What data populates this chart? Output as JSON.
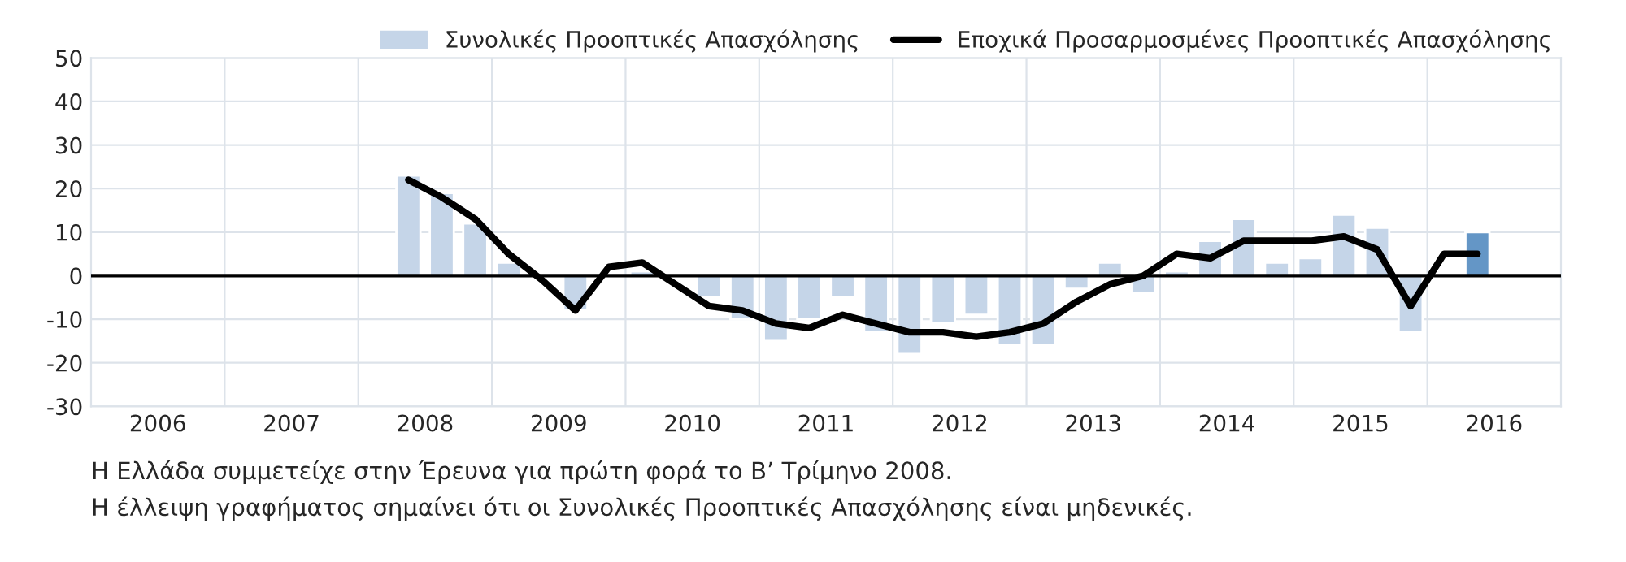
{
  "chart_data": {
    "type": "bar",
    "x": [
      2008.375,
      2008.625,
      2008.875,
      2009.125,
      2009.375,
      2009.625,
      2009.875,
      2010.125,
      2010.375,
      2010.625,
      2010.875,
      2011.125,
      2011.375,
      2011.625,
      2011.875,
      2012.125,
      2012.375,
      2012.625,
      2012.875,
      2013.125,
      2013.375,
      2013.625,
      2013.875,
      2014.125,
      2014.375,
      2014.625,
      2014.875,
      2015.125,
      2015.375,
      2015.625,
      2015.875,
      2016.125,
      2016.375
    ],
    "series": [
      {
        "name": "Συνολικές Προοπτικές Απασχόλησης",
        "color": "#c5d5e8",
        "colors": [
          "#c5d5e8",
          "#c5d5e8",
          "#c5d5e8",
          "#c5d5e8",
          "#c5d5e8",
          "#c5d5e8",
          "#c5d5e8",
          "#c5d5e8",
          "#c5d5e8",
          "#c5d5e8",
          "#c5d5e8",
          "#c5d5e8",
          "#c5d5e8",
          "#c5d5e8",
          "#c5d5e8",
          "#c5d5e8",
          "#c5d5e8",
          "#c5d5e8",
          "#c5d5e8",
          "#c5d5e8",
          "#c5d5e8",
          "#c5d5e8",
          "#c5d5e8",
          "#c5d5e8",
          "#c5d5e8",
          "#c5d5e8",
          "#c5d5e8",
          "#c5d5e8",
          "#c5d5e8",
          "#c5d5e8",
          "#c5d5e8",
          "#c5d5e8",
          "#6496c6"
        ],
        "values": [
          23,
          19,
          12,
          3,
          null,
          -8,
          null,
          1,
          null,
          -5,
          -10,
          -15,
          -10,
          -5,
          -13,
          -18,
          -11,
          -9,
          -16,
          -16,
          -3,
          3,
          -4,
          1,
          8,
          13,
          3,
          4,
          14,
          11,
          -13,
          null,
          10
        ]
      },
      {
        "name": "Εποχικά Προσαρμοσμένες Προοπτικές Απασχόλησης",
        "type": "line",
        "color": "#000000",
        "values": [
          22,
          18,
          13,
          5,
          -1,
          -8,
          2,
          3,
          -2,
          -7,
          -8,
          -11,
          -12,
          -9,
          -11,
          -13,
          -13,
          -14,
          -13,
          -11,
          -6,
          -2,
          0,
          5,
          4,
          8,
          8,
          8,
          9,
          6,
          -7,
          5,
          5
        ]
      }
    ],
    "xlim": [
      2006,
      2017
    ],
    "xticks": [
      {
        "value": 2006.5,
        "label": "2006"
      },
      {
        "value": 2007,
        "label": null
      },
      {
        "value": 2007.5,
        "label": "2007"
      },
      {
        "value": 2008,
        "label": null
      },
      {
        "value": 2008.5,
        "label": "2008"
      },
      {
        "value": 2009,
        "label": null
      },
      {
        "value": 2009.5,
        "label": "2009"
      },
      {
        "value": 2010,
        "label": null
      },
      {
        "value": 2010.5,
        "label": "2010"
      },
      {
        "value": 2011,
        "label": null
      },
      {
        "value": 2011.5,
        "label": "2011"
      },
      {
        "value": 2012,
        "label": null
      },
      {
        "value": 2012.5,
        "label": "2012"
      },
      {
        "value": 2013,
        "label": null
      },
      {
        "value": 2013.5,
        "label": "2013"
      },
      {
        "value": 2014,
        "label": null
      },
      {
        "value": 2014.5,
        "label": "2014"
      },
      {
        "value": 2015,
        "label": null
      },
      {
        "value": 2015.5,
        "label": "2015"
      },
      {
        "value": 2016,
        "label": null
      },
      {
        "value": 2016.5,
        "label": "2016"
      }
    ],
    "ylim": [
      -30,
      50
    ],
    "yticks": [
      -30,
      -20,
      -10,
      0,
      10,
      20,
      30,
      40,
      50
    ],
    "ref_lines": [
      {
        "axis": "y",
        "value": 0,
        "color": "#000000"
      }
    ],
    "grid": true,
    "legend": "top right",
    "annotations": [
      "Η Ελλάδα συμμετείχε στην Έρευνα για πρώτη φορά το Β’ Τρίμηνο 2008.",
      "Η έλλειψη γραφήματος σημαίνει ότι οι Συνολικές Προοπτικές Απασχόλησης είναι μηδενικές."
    ]
  }
}
